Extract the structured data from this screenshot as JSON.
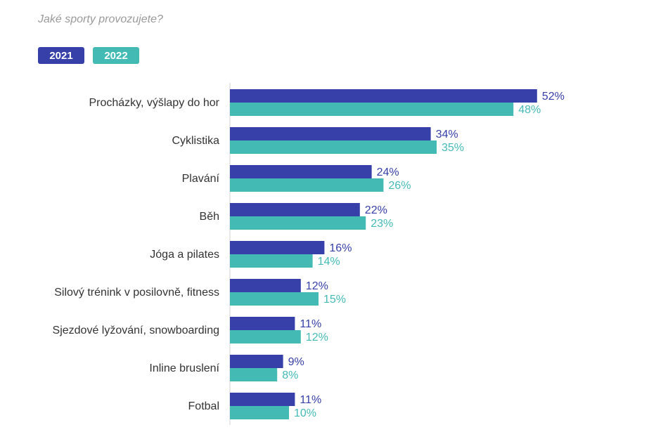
{
  "subtitle": "Jaké sporty provozujete?",
  "colors": {
    "series_2021": "#3640a8",
    "series_2022": "#44bab5",
    "category_text": "#333333",
    "axis": "#d0d0d0"
  },
  "chart_data": {
    "type": "bar",
    "orientation": "horizontal",
    "title": "",
    "xlabel": "",
    "ylabel": "",
    "xlim": [
      0,
      60
    ],
    "grid": false,
    "legend_position": "top-left",
    "value_format": "percent",
    "categories": [
      "Procházky, výšlapy do hor",
      "Cyklistika",
      "Plavání",
      "Běh",
      "Jóga a pilates",
      "Silový trénink v posilovně, fitness",
      "Sjezdové lyžování, snowboarding",
      "Inline bruslení",
      "Fotbal"
    ],
    "series": [
      {
        "name": "2021",
        "color": "#3640a8",
        "values": [
          52,
          34,
          24,
          22,
          16,
          12,
          11,
          9,
          11
        ]
      },
      {
        "name": "2022",
        "color": "#44bab5",
        "values": [
          48,
          35,
          26,
          23,
          14,
          15,
          12,
          8,
          10
        ]
      }
    ]
  }
}
